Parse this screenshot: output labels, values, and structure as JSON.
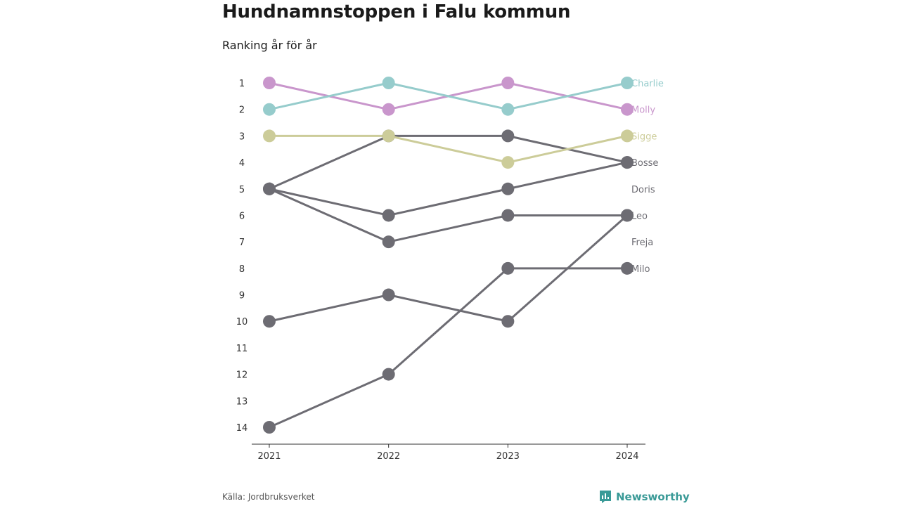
{
  "page": {
    "title": "Hundnamnstoppen i Falu kommun",
    "subtitle": "Ranking år för år",
    "source": "Källa: Jordbruksverket",
    "brand": "Newsworthy",
    "brand_icon": "bar-chart-speech-icon"
  },
  "colors": {
    "brand": "#3a9a97",
    "axis": "#333333",
    "tick_text": "#333333"
  },
  "chart_data": {
    "type": "line",
    "title": "Hundnamnstoppen i Falu kommun",
    "subtitle": "Ranking år för år",
    "x": [
      "2021",
      "2022",
      "2023",
      "2024"
    ],
    "y_ticks": [
      1,
      2,
      3,
      4,
      5,
      6,
      7,
      8,
      9,
      10,
      11,
      12,
      13,
      14
    ],
    "ylim": [
      1,
      14
    ],
    "y_inverted": true,
    "grid": false,
    "legend": "direct labels at right end of lines",
    "series": [
      {
        "color": "#6d6c73",
        "values": [
          14,
          12,
          8,
          8
        ]
      },
      {
        "color": "#6d6c73",
        "values": [
          10,
          9,
          10,
          6
        ]
      },
      {
        "color": "#6d6c73",
        "values": [
          5,
          7,
          6,
          6
        ]
      },
      {
        "color": "#6d6c73",
        "values": [
          5,
          6,
          5,
          4
        ]
      },
      {
        "color": "#6d6c73",
        "values": [
          5,
          3,
          3,
          4
        ]
      },
      {
        "color": "#cccc99",
        "values": [
          3,
          3,
          4,
          3
        ]
      },
      {
        "color": "#c996cc",
        "values": [
          1,
          2,
          1,
          2
        ]
      },
      {
        "color": "#96cccc",
        "values": [
          2,
          1,
          2,
          1
        ]
      }
    ],
    "end_labels": [
      {
        "text": "Charlie",
        "rank": 1,
        "color": "#96cccc"
      },
      {
        "text": "Molly",
        "rank": 2,
        "color": "#c996cc"
      },
      {
        "text": "Sigge",
        "rank": 3,
        "color": "#cccc99"
      },
      {
        "text": "Bosse",
        "rank": 4,
        "color": "#6d6c73"
      },
      {
        "text": "Doris",
        "rank": 5,
        "color": "#6d6c73"
      },
      {
        "text": "Leo",
        "rank": 6,
        "color": "#6d6c73"
      },
      {
        "text": "Freja",
        "rank": 7,
        "color": "#6d6c73"
      },
      {
        "text": "Milo",
        "rank": 8,
        "color": "#6d6c73"
      }
    ]
  }
}
